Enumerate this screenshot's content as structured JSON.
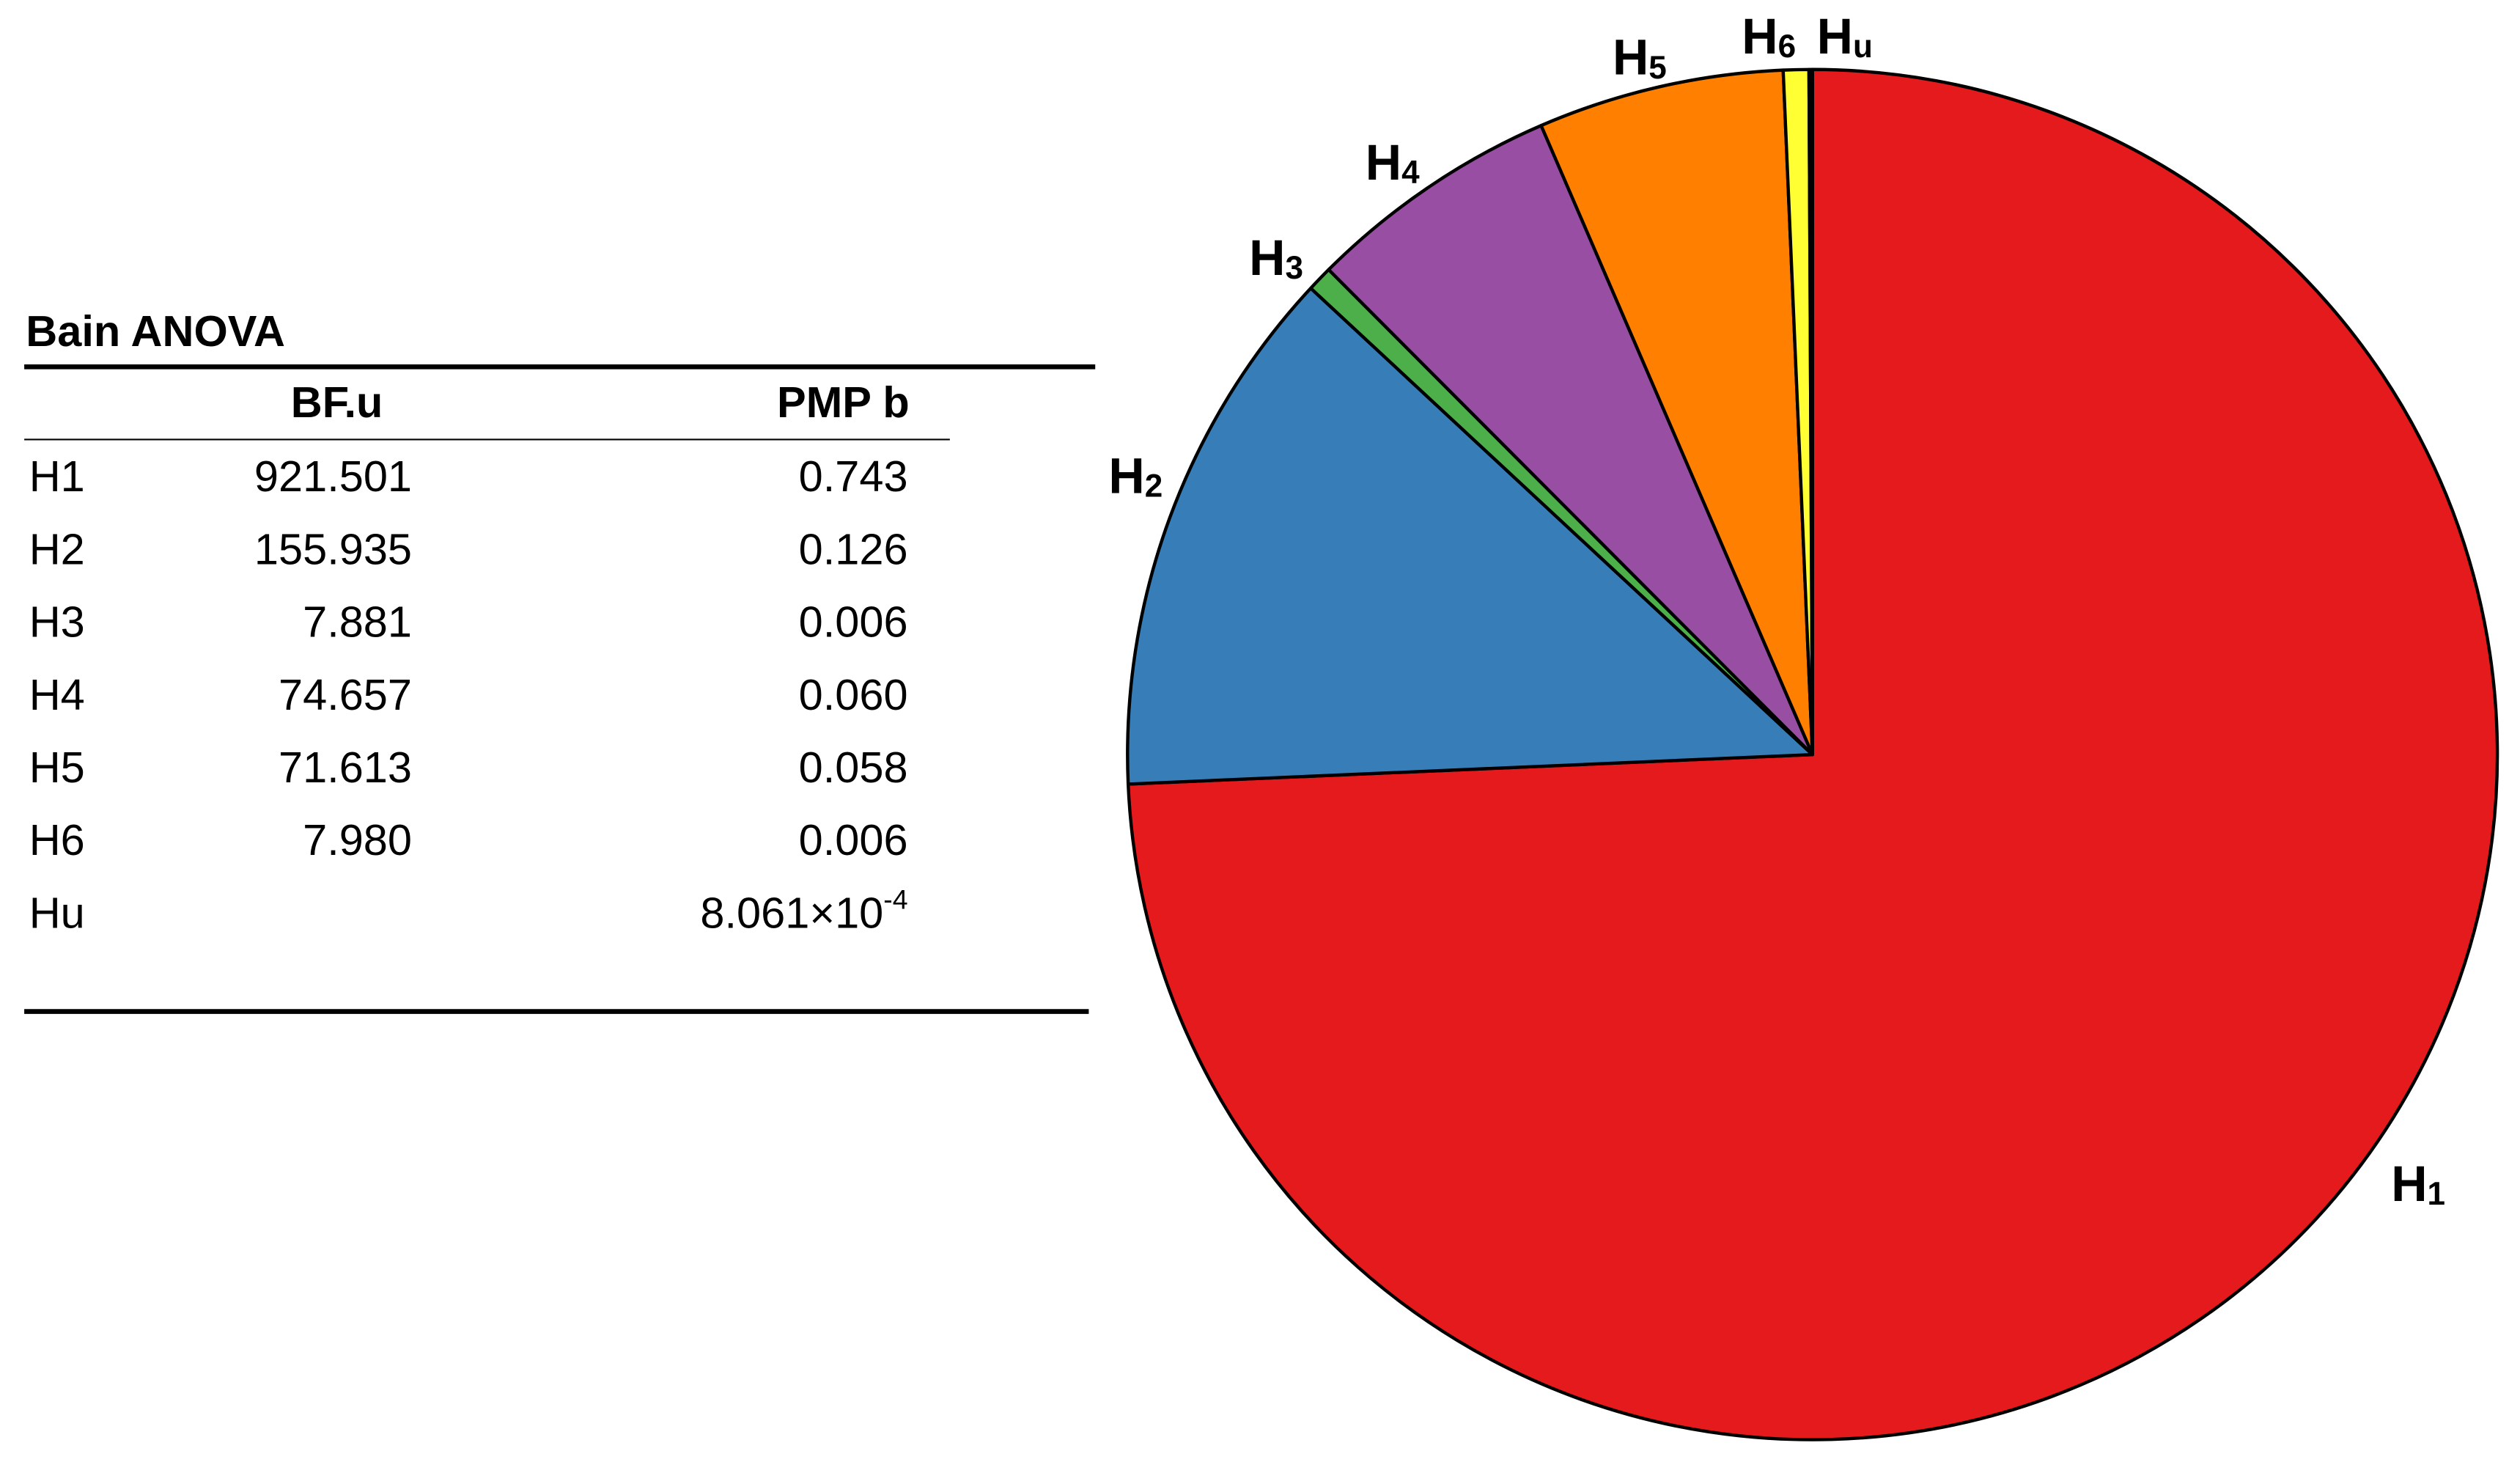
{
  "table": {
    "title": "Bain ANOVA",
    "columns": [
      "BF.u",
      "PMP b"
    ],
    "rows": [
      {
        "name": "H1",
        "bf": "921.501",
        "pmp": "0.743"
      },
      {
        "name": "H2",
        "bf": "155.935",
        "pmp": "0.126"
      },
      {
        "name": "H3",
        "bf": "7.881",
        "pmp": "0.006"
      },
      {
        "name": "H4",
        "bf": "74.657",
        "pmp": "0.060"
      },
      {
        "name": "H5",
        "bf": "71.613",
        "pmp": "0.058"
      },
      {
        "name": "H6",
        "bf": "7.980",
        "pmp": "0.006"
      },
      {
        "name": "Hu",
        "pmp": [
          "8.061×10",
          "-4"
        ]
      }
    ]
  },
  "chart_data": {
    "type": "pie",
    "categories": [
      [
        "H",
        "1"
      ],
      [
        "H",
        "2"
      ],
      [
        "H",
        "3"
      ],
      [
        "H",
        "4"
      ],
      [
        "H",
        "5"
      ],
      [
        "H",
        "6"
      ],
      [
        "H",
        "u"
      ]
    ],
    "values": [
      0.743,
      0.126,
      0.006,
      0.06,
      0.058,
      0.006,
      0.0008061
    ],
    "colors": [
      "#e41a1c",
      "#377eb8",
      "#4daf4a",
      "#984ea3",
      "#ff7f00",
      "#ffff33",
      "#000000"
    ]
  }
}
